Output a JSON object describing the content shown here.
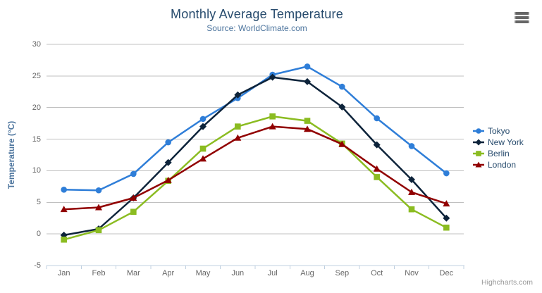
{
  "chart": {
    "title": "Monthly Average Temperature",
    "subtitle": "Source: WorldClimate.com",
    "y_axis_title": "Temperature (°C)",
    "credits": "Highcharts.com",
    "icons": {
      "menu": "hamburger-icon"
    },
    "colors": {
      "title_text": "#274b6d",
      "subtitle_text": "#4d759e",
      "axis_label_text": "#666666",
      "legend_text": "#274b6d",
      "gridline": "#c0c0c0",
      "axis_line": "#c0d0e0",
      "credits_text": "#999999"
    }
  },
  "chart_data": {
    "type": "line",
    "title": "Monthly Average Temperature",
    "subtitle": "Source: WorldClimate.com",
    "xlabel": "",
    "ylabel": "Temperature (°C)",
    "categories": [
      "Jan",
      "Feb",
      "Mar",
      "Apr",
      "May",
      "Jun",
      "Jul",
      "Aug",
      "Sep",
      "Oct",
      "Nov",
      "Dec"
    ],
    "ylim": [
      -5,
      30
    ],
    "y_ticks": [
      30,
      25,
      20,
      15,
      10,
      5,
      0,
      -5
    ],
    "grid": true,
    "legend_position": "right",
    "series": [
      {
        "name": "Tokyo",
        "color": "#2f7ed8",
        "marker": "circle",
        "values": [
          7.0,
          6.9,
          9.5,
          14.5,
          18.2,
          21.5,
          25.2,
          26.5,
          23.3,
          18.3,
          13.9,
          9.6
        ]
      },
      {
        "name": "New York",
        "color": "#0d233a",
        "marker": "diamond",
        "values": [
          -0.2,
          0.8,
          5.7,
          11.3,
          17.0,
          22.0,
          24.8,
          24.1,
          20.1,
          14.1,
          8.6,
          2.5
        ]
      },
      {
        "name": "Berlin",
        "color": "#8bbc21",
        "marker": "square",
        "values": [
          -0.9,
          0.6,
          3.5,
          8.4,
          13.5,
          17.0,
          18.6,
          17.9,
          14.3,
          9.0,
          3.9,
          1.0
        ]
      },
      {
        "name": "London",
        "color": "#910000",
        "marker": "triangle",
        "values": [
          3.9,
          4.2,
          5.7,
          8.5,
          11.9,
          15.2,
          17.0,
          16.6,
          14.2,
          10.3,
          6.6,
          4.8
        ]
      }
    ]
  }
}
